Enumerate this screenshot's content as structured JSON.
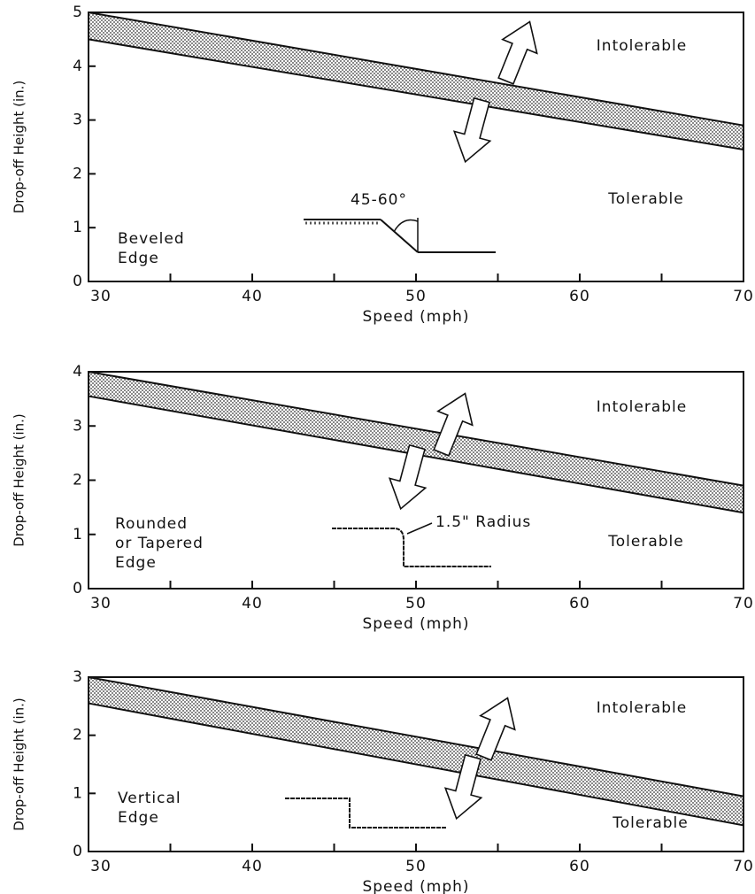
{
  "chart_data": [
    {
      "type": "band",
      "x": [
        30,
        70
      ],
      "series": [
        {
          "values": [
            5.0,
            2.9
          ]
        },
        {
          "values": [
            4.5,
            2.45
          ]
        }
      ],
      "xlim": [
        30,
        70
      ],
      "xticks": [
        30,
        40,
        50,
        60,
        70
      ],
      "xminorticks": [
        35,
        45,
        55,
        65
      ],
      "ylim": [
        0,
        5
      ],
      "yticks": [
        0,
        1,
        2,
        3,
        4,
        5
      ],
      "xlabel": "Speed (mph)",
      "ylabel": "Drop-off Height (in.)",
      "annotations": [
        "Intolerable",
        "Tolerable",
        "45-60°",
        "Beveled",
        "Edge"
      ]
    },
    {
      "type": "band",
      "x": [
        30,
        70
      ],
      "series": [
        {
          "values": [
            4.0,
            1.9
          ]
        },
        {
          "values": [
            3.55,
            1.4
          ]
        }
      ],
      "xlim": [
        30,
        70
      ],
      "xticks": [
        30,
        40,
        50,
        60,
        70
      ],
      "xminorticks": [
        35,
        45,
        55,
        65
      ],
      "ylim": [
        0,
        4
      ],
      "yticks": [
        0,
        1,
        2,
        3,
        4
      ],
      "xlabel": "Speed (mph)",
      "ylabel": "Drop-off Height (in.)",
      "annotations": [
        "Intolerable",
        "Tolerable",
        "1.5\" Radius",
        "Rounded",
        "or Tapered",
        "Edge"
      ]
    },
    {
      "type": "band",
      "x": [
        30,
        70
      ],
      "series": [
        {
          "values": [
            3.0,
            0.95
          ]
        },
        {
          "values": [
            2.55,
            0.45
          ]
        }
      ],
      "xlim": [
        30,
        70
      ],
      "xticks": [
        30,
        40,
        50,
        60,
        70
      ],
      "xminorticks": [
        35,
        45,
        55,
        65
      ],
      "ylim": [
        0,
        3
      ],
      "yticks": [
        0,
        1,
        2,
        3
      ],
      "xlabel": "Speed (mph)",
      "ylabel": "Drop-off Height (in.)",
      "annotations": [
        "Intolerable",
        "Tolerable",
        "Vertical",
        "Edge"
      ]
    }
  ]
}
